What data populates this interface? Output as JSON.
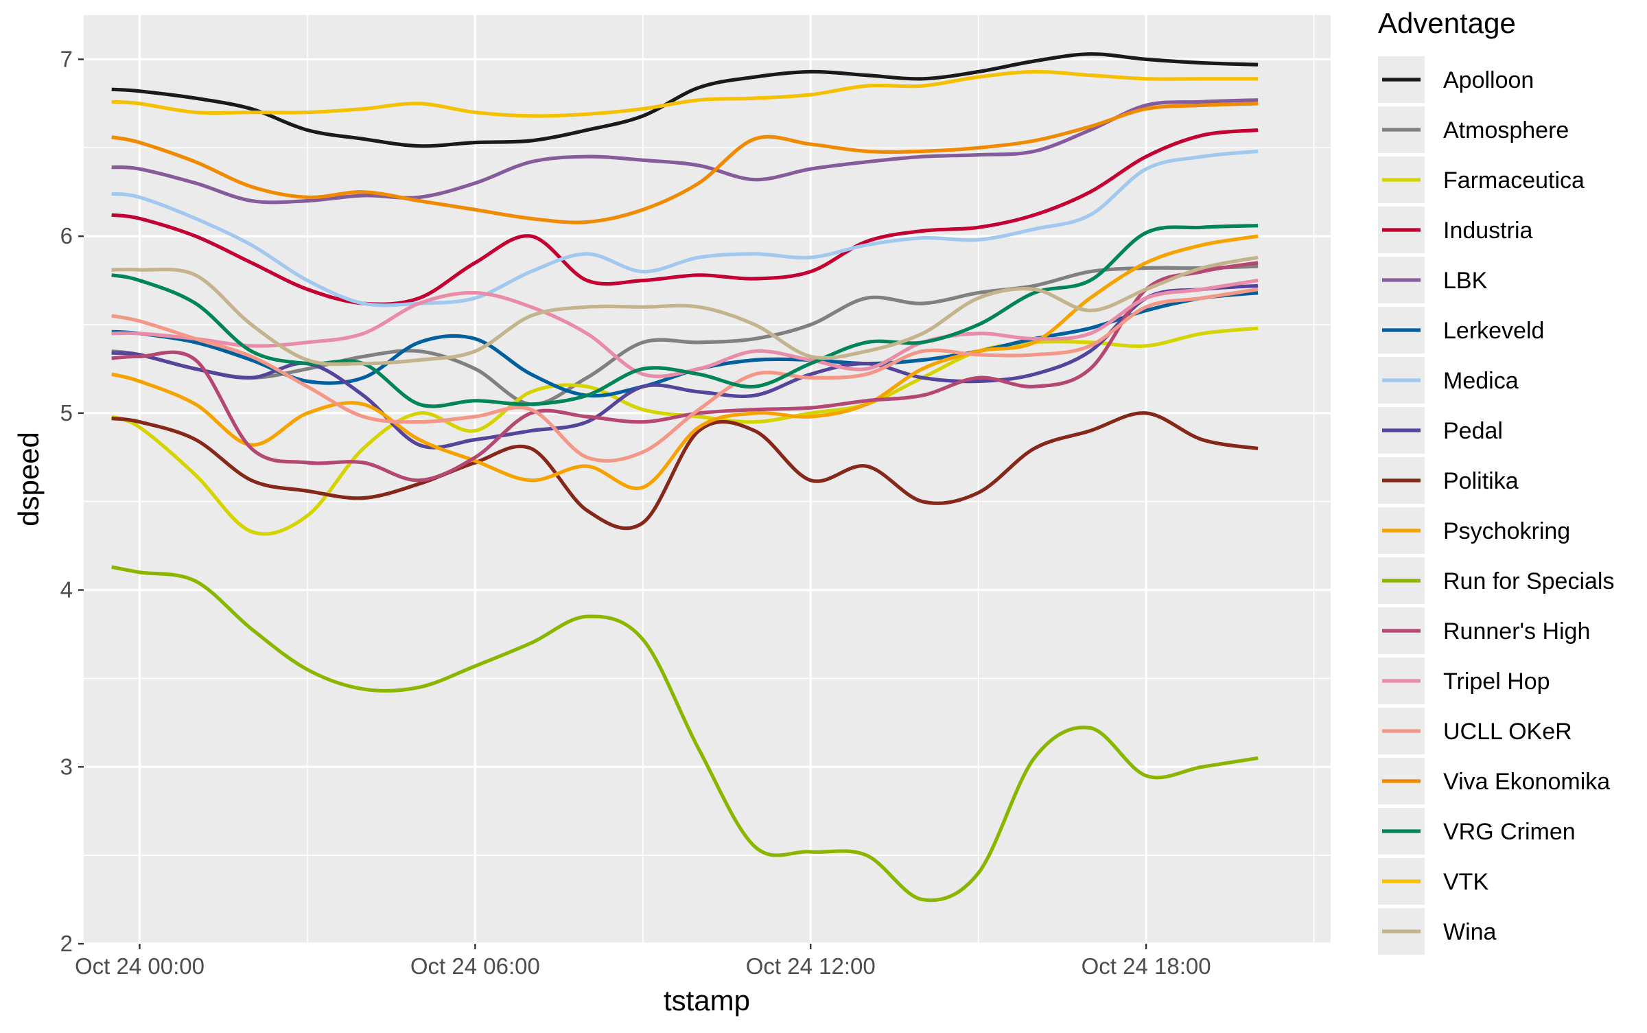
{
  "chart_data": {
    "type": "line",
    "xlabel": "tstamp",
    "ylabel": "dspeed",
    "ylim": [
      2,
      7.25
    ],
    "xlim_hours": [
      -1,
      21.3
    ],
    "x_start": "2023-10-24 00:00",
    "x_ticks": [
      {
        "label": "Oct 24 00:00",
        "hour": 0
      },
      {
        "label": "Oct 24 06:00",
        "hour": 6
      },
      {
        "label": "Oct 24 12:00",
        "hour": 12
      },
      {
        "label": "Oct 24 18:00",
        "hour": 18
      }
    ],
    "y_ticks": [
      2,
      3,
      4,
      5,
      6,
      7
    ],
    "grid": true,
    "legend": {
      "title": "Adventage",
      "position": "right"
    },
    "x": [
      -0.5,
      0.0,
      1.0,
      2.0,
      3.0,
      4.0,
      5.0,
      6.0,
      7.0,
      8.0,
      9.0,
      10.0,
      11.0,
      12.0,
      13.0,
      14.0,
      15.0,
      16.0,
      17.0,
      18.0,
      19.0,
      20.0
    ],
    "series": [
      {
        "name": "Apolloon",
        "color": "#1a1a1a",
        "values": [
          6.83,
          6.82,
          6.78,
          6.72,
          6.6,
          6.55,
          6.51,
          6.53,
          6.54,
          6.6,
          6.68,
          6.84,
          6.9,
          6.93,
          6.91,
          6.89,
          6.93,
          6.99,
          7.03,
          7.0,
          6.98,
          6.97
        ]
      },
      {
        "name": "Atmosphere",
        "color": "#808080",
        "values": [
          5.35,
          5.33,
          5.25,
          5.2,
          5.25,
          5.32,
          5.35,
          5.25,
          5.05,
          5.2,
          5.4,
          5.4,
          5.42,
          5.5,
          5.65,
          5.62,
          5.68,
          5.72,
          5.8,
          5.82,
          5.82,
          5.83
        ]
      },
      {
        "name": "Farmaceutica",
        "color": "#d5d400",
        "values": [
          4.98,
          4.92,
          4.65,
          4.33,
          4.42,
          4.8,
          5.0,
          4.9,
          5.12,
          5.15,
          5.02,
          4.98,
          4.95,
          5.0,
          5.05,
          5.2,
          5.35,
          5.4,
          5.4,
          5.38,
          5.45,
          5.48
        ]
      },
      {
        "name": "Industria",
        "color": "#c40032",
        "values": [
          6.12,
          6.1,
          6.0,
          5.85,
          5.7,
          5.62,
          5.65,
          5.85,
          6.0,
          5.75,
          5.75,
          5.78,
          5.76,
          5.8,
          5.97,
          6.03,
          6.05,
          6.12,
          6.25,
          6.45,
          6.57,
          6.6
        ]
      },
      {
        "name": "LBK",
        "color": "#855c9b",
        "values": [
          6.39,
          6.38,
          6.3,
          6.2,
          6.2,
          6.23,
          6.22,
          6.3,
          6.42,
          6.45,
          6.43,
          6.4,
          6.32,
          6.38,
          6.42,
          6.45,
          6.46,
          6.48,
          6.6,
          6.74,
          6.76,
          6.77
        ]
      },
      {
        "name": "Lerkeveld",
        "color": "#005f9e",
        "values": [
          5.46,
          5.45,
          5.4,
          5.3,
          5.18,
          5.2,
          5.4,
          5.42,
          5.22,
          5.1,
          5.15,
          5.25,
          5.3,
          5.3,
          5.28,
          5.3,
          5.35,
          5.42,
          5.48,
          5.58,
          5.65,
          5.68
        ]
      },
      {
        "name": "Medica",
        "color": "#a1c8ee",
        "values": [
          6.24,
          6.22,
          6.1,
          5.95,
          5.75,
          5.62,
          5.62,
          5.65,
          5.8,
          5.9,
          5.8,
          5.88,
          5.9,
          5.88,
          5.95,
          5.99,
          5.98,
          6.04,
          6.12,
          6.38,
          6.45,
          6.48
        ]
      },
      {
        "name": "Pedal",
        "color": "#54449c",
        "values": [
          5.34,
          5.33,
          5.25,
          5.2,
          5.28,
          5.1,
          4.82,
          4.85,
          4.9,
          4.95,
          5.15,
          5.12,
          5.1,
          5.22,
          5.28,
          5.2,
          5.18,
          5.22,
          5.35,
          5.65,
          5.7,
          5.72
        ]
      },
      {
        "name": "Politika",
        "color": "#85281a",
        "values": [
          4.97,
          4.95,
          4.85,
          4.62,
          4.56,
          4.52,
          4.6,
          4.72,
          4.8,
          4.45,
          4.38,
          4.9,
          4.9,
          4.62,
          4.7,
          4.5,
          4.55,
          4.8,
          4.9,
          5.0,
          4.85,
          4.8
        ]
      },
      {
        "name": "Psychokring",
        "color": "#f6a300",
        "values": [
          5.22,
          5.18,
          5.05,
          4.82,
          5.0,
          5.05,
          4.85,
          4.73,
          4.62,
          4.7,
          4.58,
          4.92,
          5.0,
          4.98,
          5.05,
          5.25,
          5.35,
          5.4,
          5.65,
          5.85,
          5.95,
          6.0
        ]
      },
      {
        "name": "Run for Specials",
        "color": "#8ab600",
        "values": [
          4.13,
          4.1,
          4.05,
          3.78,
          3.55,
          3.44,
          3.45,
          3.57,
          3.7,
          3.85,
          3.72,
          3.1,
          2.55,
          2.52,
          2.5,
          2.25,
          2.4,
          3.05,
          3.22,
          2.95,
          3.0,
          3.05
        ]
      },
      {
        "name": "Runner's High",
        "color": "#b54872",
        "values": [
          5.31,
          5.32,
          5.3,
          4.8,
          4.72,
          4.72,
          4.62,
          4.75,
          5.0,
          4.98,
          4.95,
          5.0,
          5.02,
          5.03,
          5.07,
          5.1,
          5.2,
          5.15,
          5.25,
          5.7,
          5.8,
          5.85
        ]
      },
      {
        "name": "Tripel Hop",
        "color": "#e88ca8",
        "values": [
          5.45,
          5.45,
          5.42,
          5.38,
          5.4,
          5.45,
          5.62,
          5.68,
          5.6,
          5.45,
          5.22,
          5.25,
          5.35,
          5.3,
          5.25,
          5.4,
          5.45,
          5.42,
          5.45,
          5.65,
          5.7,
          5.75
        ]
      },
      {
        "name": "UCLL OKeR",
        "color": "#f49786",
        "values": [
          5.55,
          5.52,
          5.42,
          5.32,
          5.15,
          4.98,
          4.95,
          4.98,
          5.02,
          4.75,
          4.78,
          5.02,
          5.22,
          5.2,
          5.22,
          5.35,
          5.33,
          5.33,
          5.38,
          5.6,
          5.65,
          5.7
        ]
      },
      {
        "name": "Viva Ekonomika",
        "color": "#f08a00",
        "values": [
          6.56,
          6.53,
          6.42,
          6.28,
          6.22,
          6.25,
          6.2,
          6.15,
          6.1,
          6.08,
          6.15,
          6.3,
          6.55,
          6.52,
          6.48,
          6.48,
          6.5,
          6.54,
          6.62,
          6.72,
          6.74,
          6.75
        ]
      },
      {
        "name": "VRG Crimen",
        "color": "#00845a",
        "values": [
          5.78,
          5.75,
          5.62,
          5.35,
          5.28,
          5.28,
          5.05,
          5.07,
          5.05,
          5.1,
          5.25,
          5.22,
          5.15,
          5.28,
          5.4,
          5.4,
          5.5,
          5.68,
          5.75,
          6.02,
          6.05,
          6.06
        ]
      },
      {
        "name": "VTK",
        "color": "#f5c000",
        "values": [
          6.76,
          6.75,
          6.7,
          6.7,
          6.7,
          6.72,
          6.75,
          6.7,
          6.68,
          6.69,
          6.72,
          6.77,
          6.78,
          6.8,
          6.85,
          6.85,
          6.9,
          6.93,
          6.91,
          6.89,
          6.89,
          6.89
        ]
      },
      {
        "name": "Wina",
        "color": "#c4b48e",
        "values": [
          5.81,
          5.81,
          5.78,
          5.5,
          5.3,
          5.28,
          5.3,
          5.35,
          5.55,
          5.6,
          5.6,
          5.6,
          5.5,
          5.32,
          5.35,
          5.45,
          5.65,
          5.7,
          5.58,
          5.7,
          5.82,
          5.88
        ]
      }
    ]
  }
}
